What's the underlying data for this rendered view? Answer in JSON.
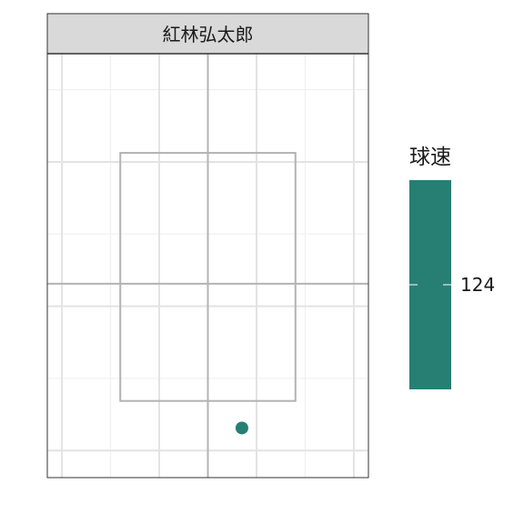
{
  "chart_data": {
    "type": "scatter",
    "facet_label": "紅林弘太郎",
    "xlim": [
      -1.65,
      1.65
    ],
    "ylim": [
      0.0,
      4.7
    ],
    "x_gridlines_major": [
      -1.5,
      -0.5,
      0.5,
      1.5
    ],
    "x_gridlines_minor": [
      -1.0,
      0.0,
      1.0
    ],
    "y_gridlines_major": [
      0.3,
      1.9,
      3.5
    ],
    "y_gridlines_minor": [
      1.1,
      2.7,
      4.3
    ],
    "reference_lines": {
      "vertical_x": 0.0,
      "horizontal_y": 2.15
    },
    "strike_zone": {
      "x": [
        -0.9,
        0.9
      ],
      "y": [
        0.85,
        3.6
      ]
    },
    "points": [
      {
        "x": 0.35,
        "y": 0.55,
        "speed": 124
      }
    ],
    "legend": {
      "title": "球速",
      "tick_label": "124",
      "tick_value": 124,
      "color": "#277F74"
    },
    "grid": true,
    "legend_position": "right"
  }
}
